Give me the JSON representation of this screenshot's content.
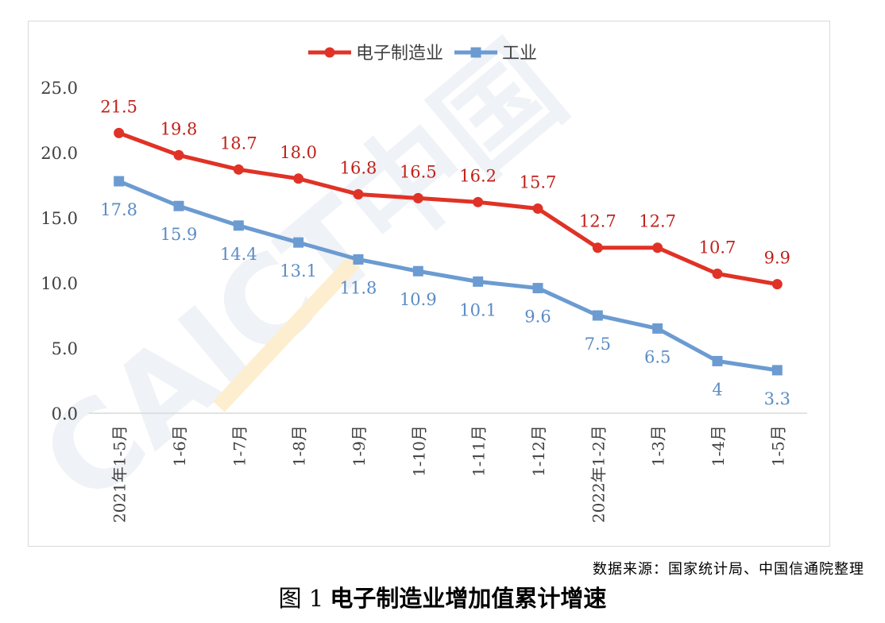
{
  "chart_data": {
    "type": "line",
    "categories": [
      "2021年1-5月",
      "1-6月",
      "1-7月",
      "1-8月",
      "1-9月",
      "1-10月",
      "1-11月",
      "1-12月",
      "2022年1-2月",
      "1-3月",
      "1-4月",
      "1-5月"
    ],
    "series": [
      {
        "name": "电子制造业",
        "values": [
          21.5,
          19.8,
          18.7,
          18.0,
          16.8,
          16.5,
          16.2,
          15.7,
          12.7,
          12.7,
          10.7,
          9.9
        ],
        "labels": [
          "21.5",
          "19.8",
          "18.7",
          "18.0",
          "16.8",
          "16.5",
          "16.2",
          "15.7",
          "12.7",
          "12.7",
          "10.7",
          "9.9"
        ],
        "color": "#e03226",
        "label_color": "#c0211b",
        "marker": "circle",
        "label_position": "above"
      },
      {
        "name": "工业",
        "values": [
          17.8,
          15.9,
          14.4,
          13.1,
          11.8,
          10.9,
          10.1,
          9.6,
          7.5,
          6.5,
          4.0,
          3.3
        ],
        "labels": [
          "17.8",
          "15.9",
          "14.4",
          "13.1",
          "11.8",
          "10.9",
          "10.1",
          "9.6",
          "7.5",
          "6.5",
          "4",
          "3.3"
        ],
        "color": "#6b9bd1",
        "label_color": "#5b8cc4",
        "marker": "square",
        "label_position": "below"
      }
    ],
    "ylim": [
      0,
      25
    ],
    "y_ticks": [
      "0.0",
      "5.0",
      "10.0",
      "15.0",
      "20.0",
      "25.0"
    ],
    "grid": false,
    "legend_position": "top-center"
  },
  "watermark": {
    "text": "CAICT中国",
    "color": "#eef1f6"
  },
  "source_note": "数据来源：国家统计局、中国信通院整理",
  "caption": {
    "number": "图 1",
    "title": "电子制造业增加值累计增速"
  }
}
